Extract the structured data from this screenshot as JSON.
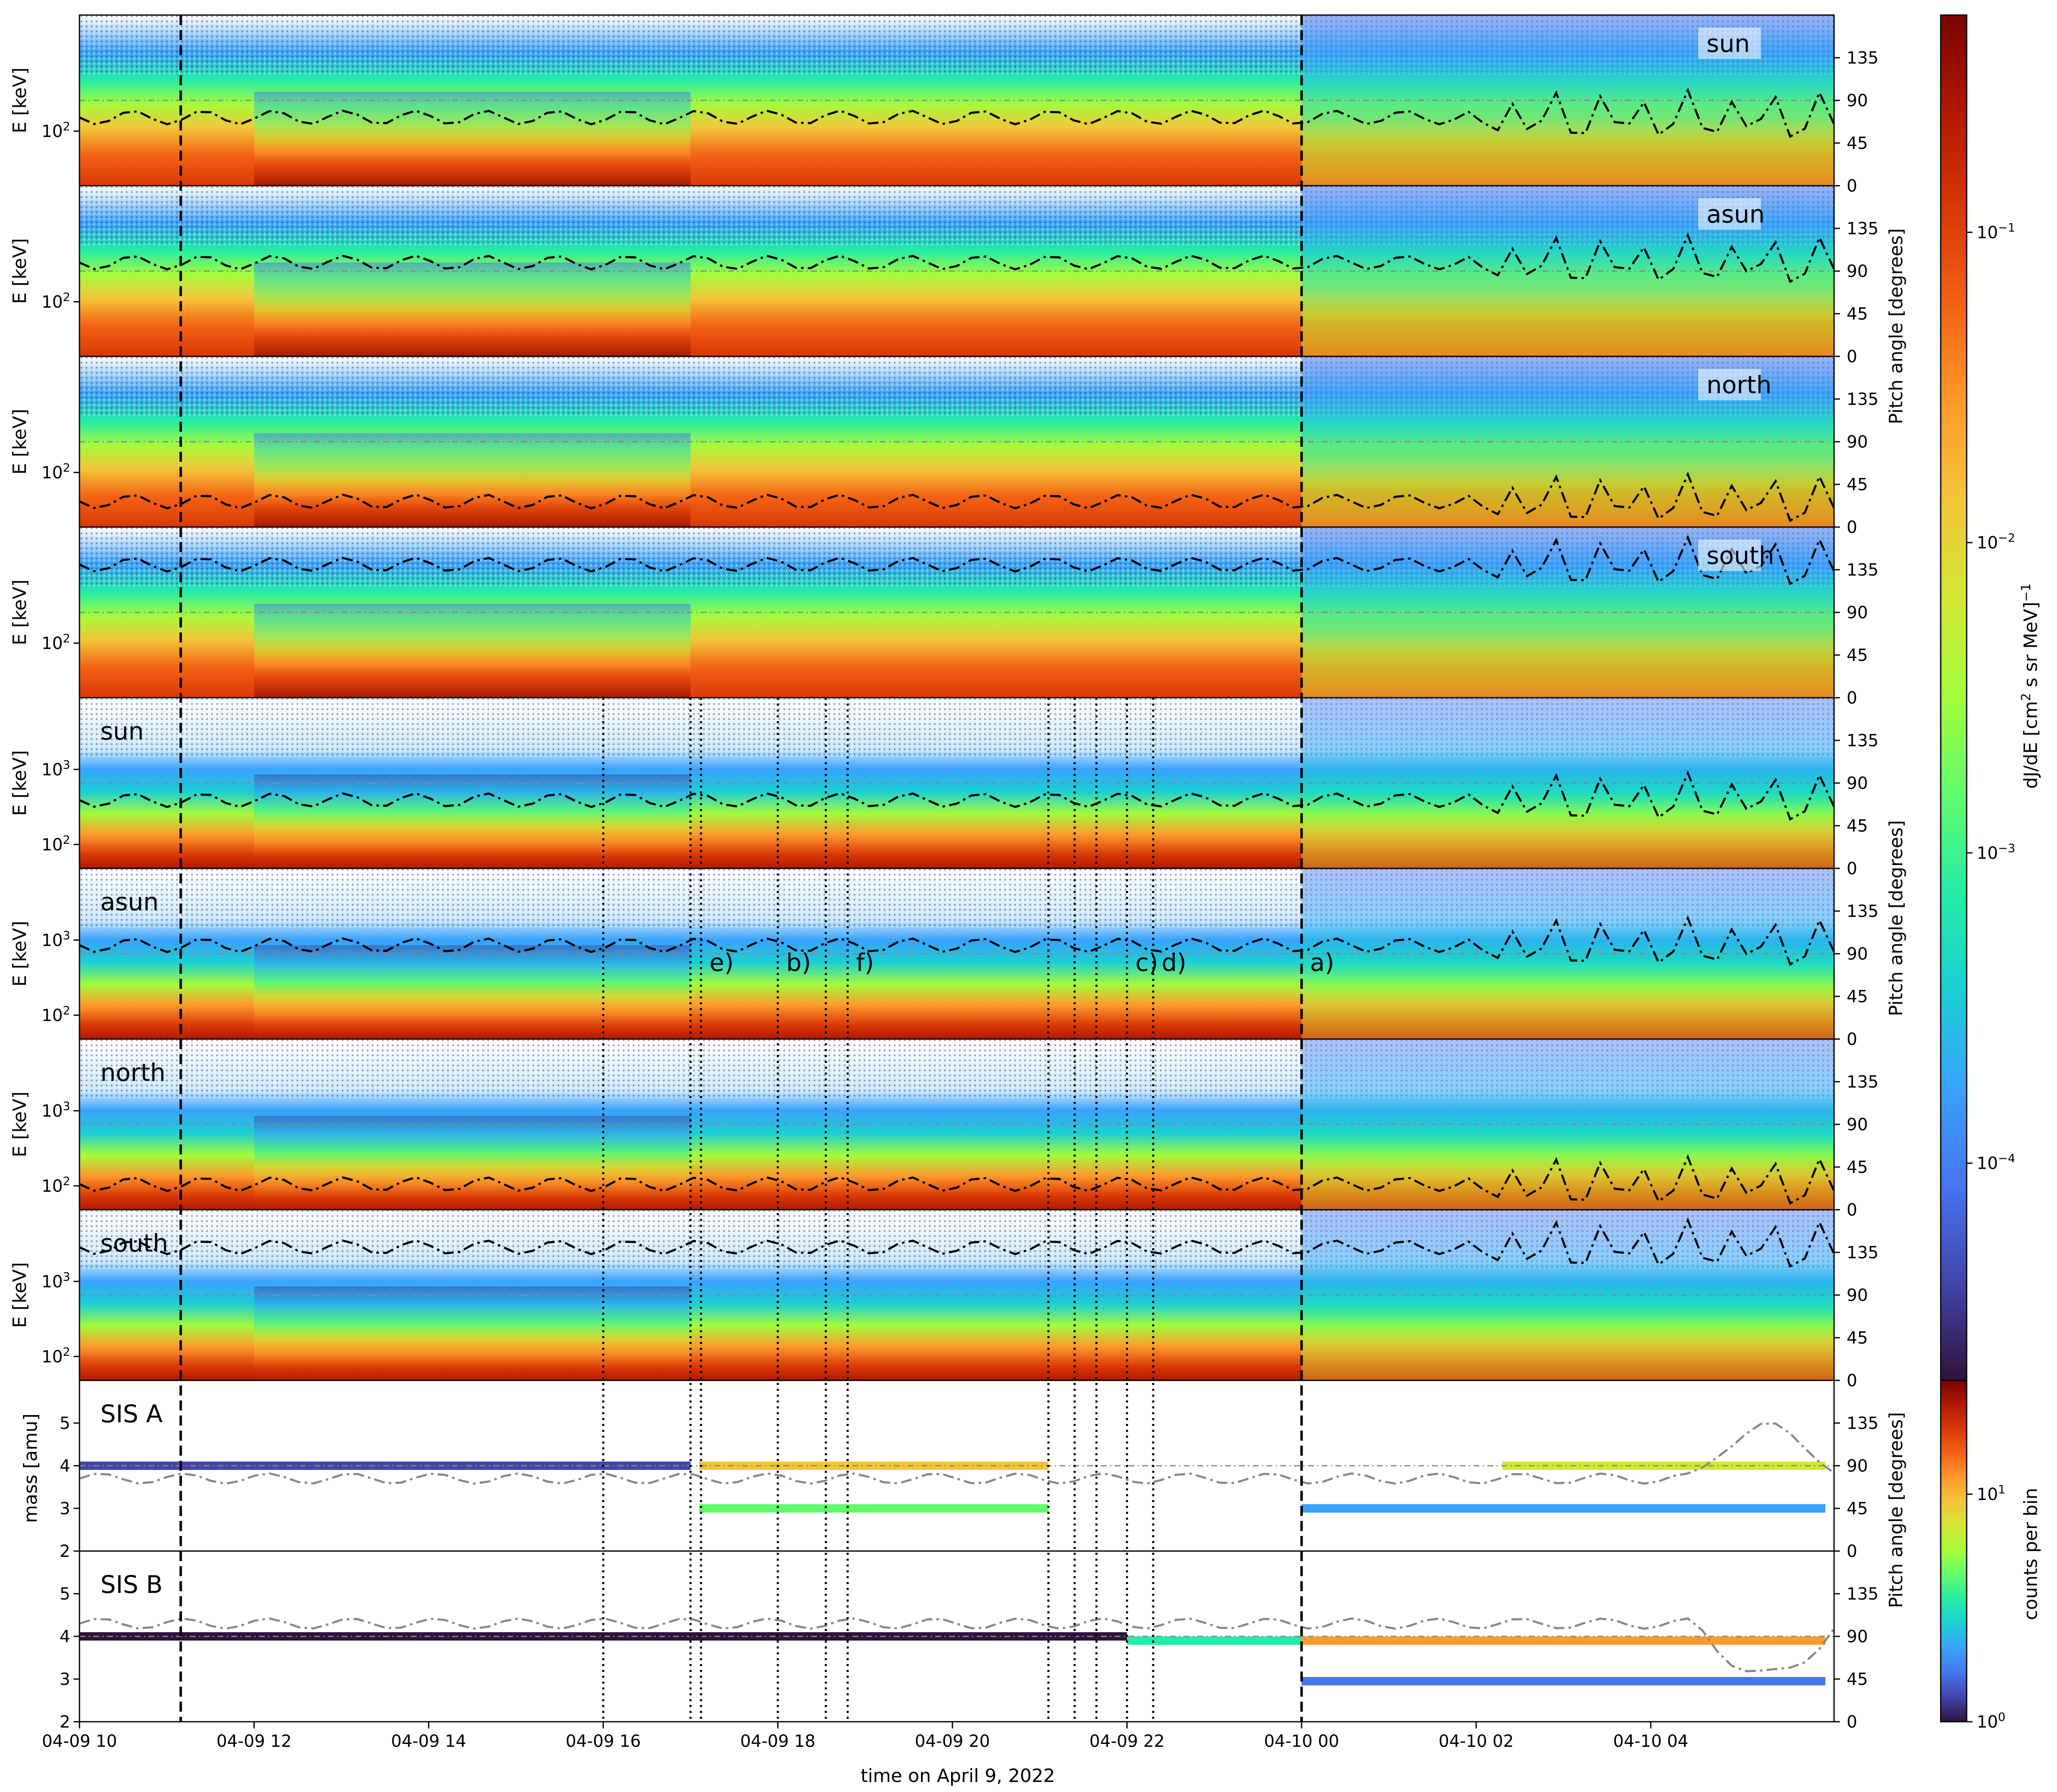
{
  "chart_data": {
    "type": "heatmap",
    "xlabel": "time on April 9, 2022",
    "x_tick_labels": [
      "04-09 10",
      "04-09 12",
      "04-09 14",
      "04-09 16",
      "04-09 18",
      "04-09 20",
      "04-09 22",
      "04-10 00",
      "04-10 02",
      "04-10 04"
    ],
    "x_tick_hours": [
      10,
      12,
      14,
      16,
      18,
      20,
      22,
      24,
      26,
      28
    ],
    "x_range_hours": [
      10,
      30.1
    ],
    "vertical_lines": {
      "dashed": [
        11.16,
        24.0
      ],
      "dotted": [
        16.0,
        17.0,
        17.12,
        18.0,
        18.55,
        18.8,
        21.1,
        21.4,
        21.65,
        22.0,
        22.3
      ]
    },
    "event_labels": [
      {
        "text": "e)",
        "t": 17.12
      },
      {
        "text": "b)",
        "t": 18.0
      },
      {
        "text": "f)",
        "t": 18.8
      },
      {
        "text": "c)",
        "t": 22.0
      },
      {
        "text": "d)",
        "t": 22.3
      },
      {
        "text": "a)",
        "t": 24.0
      }
    ],
    "pitch_angle_ticks": [
      "0",
      "45",
      "90",
      "135"
    ],
    "right_axis_label": "Pitch angle [degrees]",
    "colorbar_flux": {
      "label_main": "dJ/dE [cm",
      "label_sup": "2",
      "label_rest": " s sr MeV]",
      "label_end": "−1",
      "ticks": [
        {
          "base": "10",
          "exp": "−1"
        },
        {
          "base": "10",
          "exp": "−2"
        },
        {
          "base": "10",
          "exp": "−3"
        },
        {
          "base": "10",
          "exp": "−4"
        }
      ],
      "exp_values": [
        -1,
        -2,
        -3,
        -4
      ],
      "range_exp": [
        -4.7,
        -0.3
      ]
    },
    "colorbar_counts": {
      "label": "counts per bin",
      "ticks": [
        {
          "base": "10",
          "exp": "1"
        },
        {
          "base": "10",
          "exp": "0"
        }
      ],
      "exp_values": [
        1,
        0
      ],
      "range_exp": [
        0,
        1.5
      ]
    },
    "panels_low_energy": {
      "ylabel": "E  [keV]",
      "ytick": {
        "base": "10",
        "exp": "2"
      },
      "labels": [
        "sun",
        "asun",
        "north",
        "south"
      ]
    },
    "panels_high_energy": {
      "ylabel": "E [keV]",
      "yticks": [
        {
          "base": "10",
          "exp": "3"
        },
        {
          "base": "10",
          "exp": "2"
        }
      ],
      "labels": [
        "sun",
        "asun",
        "north",
        "south"
      ]
    },
    "panels_mass": {
      "ylabel": "mass [amu]",
      "yticks": [
        "2",
        "3",
        "4",
        "5"
      ],
      "labels": [
        "SIS A",
        "SIS B"
      ],
      "ylim": [
        2,
        6
      ]
    },
    "colors": {
      "colormap": [
        "#30123b",
        "#4145ab",
        "#4675ed",
        "#39a2fc",
        "#1bcfd4",
        "#24eca6",
        "#61fc6c",
        "#a4fc3b",
        "#d1e834",
        "#f3c63a",
        "#fe9b2d",
        "#f36315",
        "#d93806",
        "#b11901",
        "#7a0402"
      ]
    }
  }
}
